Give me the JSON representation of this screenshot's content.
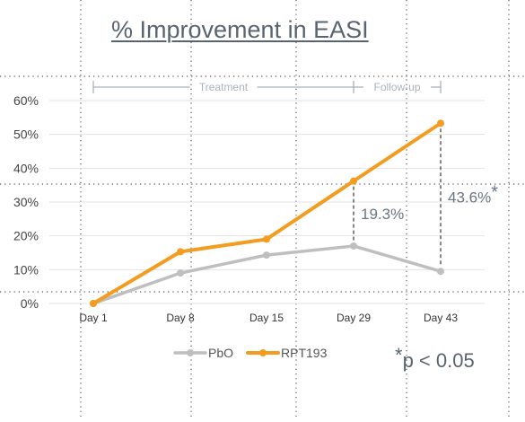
{
  "chart_data": {
    "type": "line",
    "title": "% Improvement in EASI",
    "xlabel": "",
    "ylabel": "",
    "categories": [
      "Day 1",
      "Day 8",
      "Day 15",
      "Day 29",
      "Day 43"
    ],
    "ylim": [
      0,
      60
    ],
    "yticks": [
      "0%",
      "10%",
      "20%",
      "30%",
      "40%",
      "50%",
      "60%"
    ],
    "grid": true,
    "legend_position": "bottom",
    "series": [
      {
        "name": "PbO",
        "values": [
          0,
          9,
          14.3,
          17,
          9.5
        ],
        "color": "#bfbfbf"
      },
      {
        "name": "RPT193",
        "values": [
          0,
          15.3,
          19,
          36.2,
          53.3
        ],
        "color": "#f39c1f"
      }
    ],
    "phases": [
      {
        "label": "Treatment",
        "from": "Day 1",
        "to": "Day 29"
      },
      {
        "label": "Follow-up",
        "from": "Day 29",
        "to": "Day 43"
      }
    ],
    "annotations": [
      {
        "category": "Day 29",
        "label": "19.3%"
      },
      {
        "category": "Day 43",
        "label": "43.6%*"
      }
    ],
    "footnote": "*p < 0.05"
  }
}
